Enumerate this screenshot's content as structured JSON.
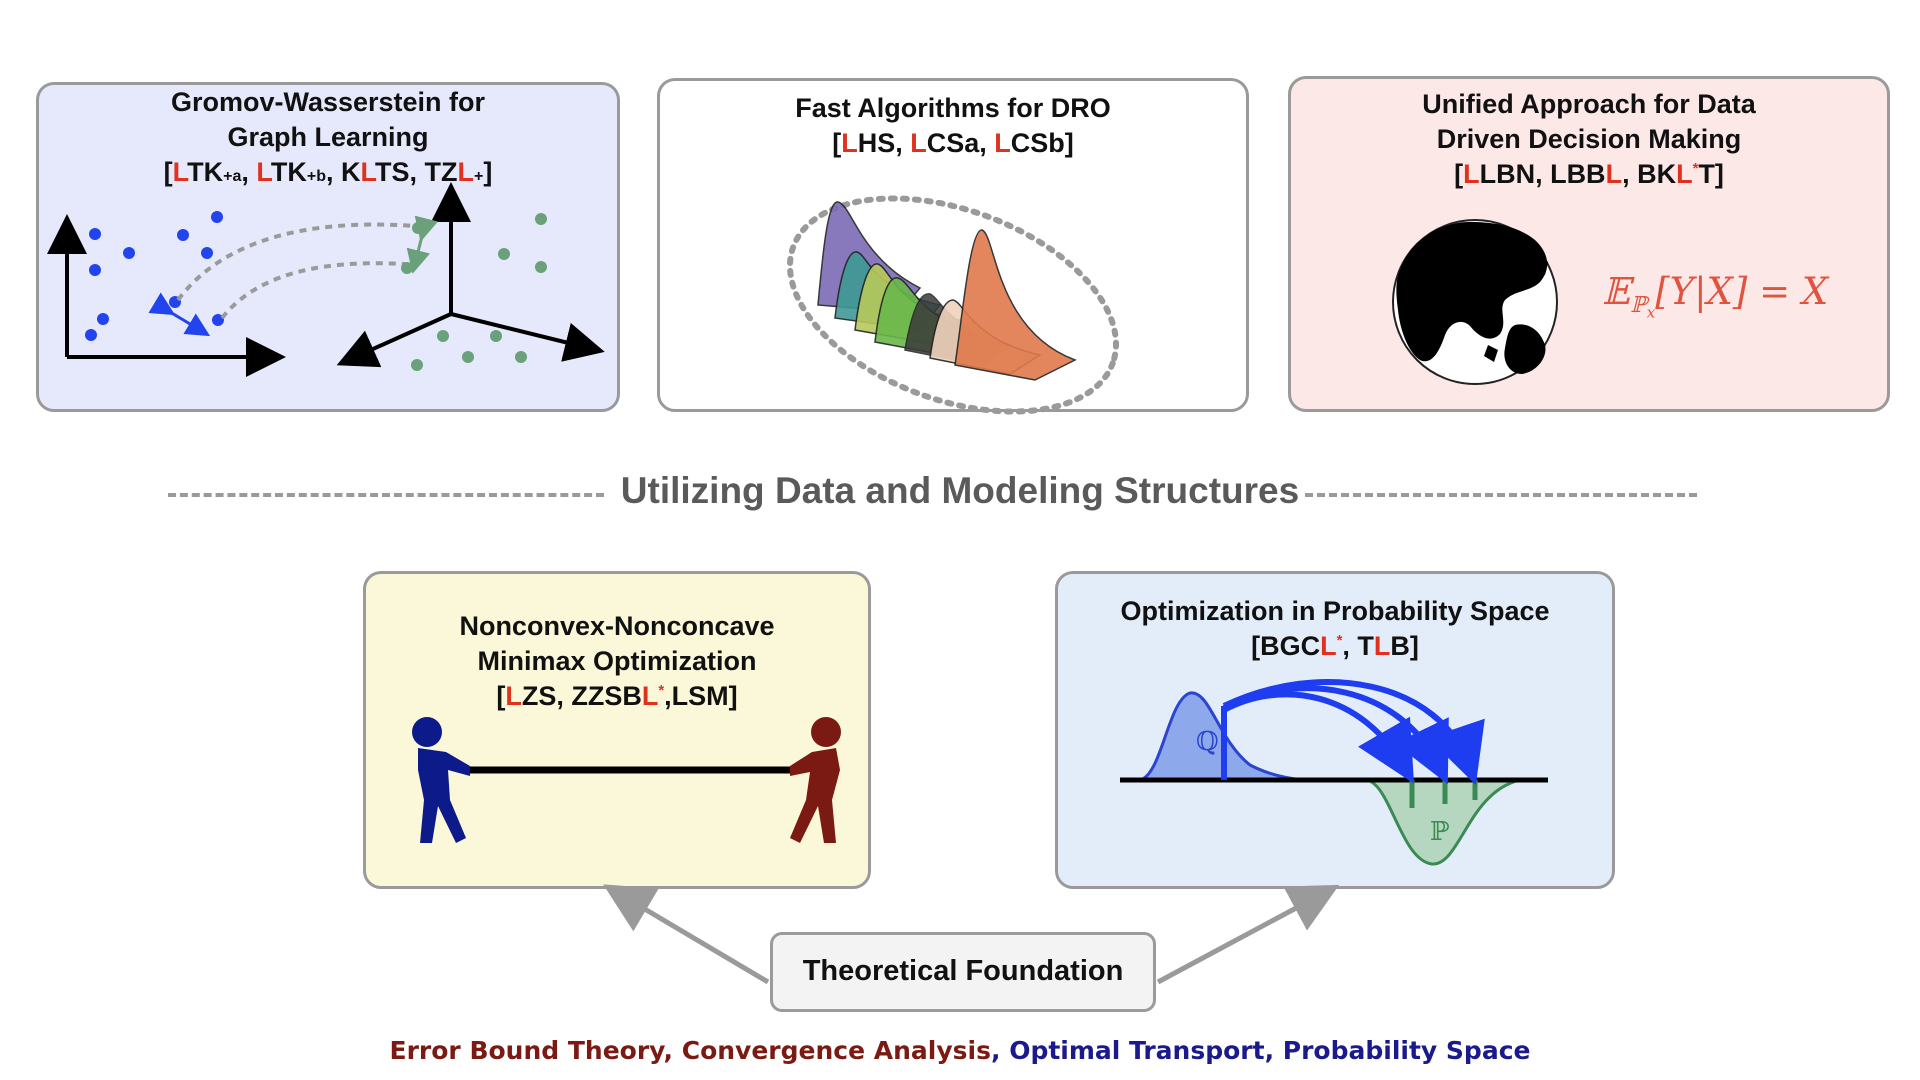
{
  "top_boxes": {
    "gw": {
      "title_line1": "Gromov-Wasserstein for",
      "title_line2": "Graph Learning",
      "refs": {
        "open": "[",
        "r1a": "L",
        "r1b": "TK",
        "r1c": "+a",
        "sep1": ", ",
        "r2a": "L",
        "r2b": "TK",
        "r2c": "+b",
        "sep2": ", K",
        "r3a": "L",
        "r3b": "TS, TZ",
        "r4a": "L",
        "r4b": "+",
        "close": "]"
      }
    },
    "dro": {
      "title_line1": "Fast Algorithms for DRO",
      "refs": {
        "open": "[",
        "r1a": "L",
        "r1b": "HS, ",
        "r2a": "L",
        "r2b": "CSa, ",
        "r3a": "L",
        "r3b": "CSb",
        "close": "]"
      }
    },
    "unified": {
      "title_line1": "Unified Approach for Data",
      "title_line2": "Driven Decision Making",
      "refs": {
        "open": "[",
        "r1a": "L",
        "r1b": "LBN, LBB",
        "r2a": "L",
        "r2b": ", BK",
        "r3a": "L",
        "r3star": "*",
        "r3b": "T",
        "close": "]"
      },
      "formula_E": "𝔼",
      "formula_sub": "ℙ",
      "formula_subsub": "x",
      "formula_rest": "[Y|X] = X"
    }
  },
  "section_label": "Utilizing Data and Modeling Structures",
  "bottom_boxes": {
    "minimax": {
      "title_line1": "Nonconvex-Nonconcave",
      "title_line2": "Minimax Optimization",
      "refs": {
        "open": "[",
        "r1a": "L",
        "r1b": "ZS, ZZSB",
        "r2a": "L",
        "r2star": "*",
        "r2b": ",LSM",
        "close": "]"
      }
    },
    "prob": {
      "title_line1": "Optimization in Probability Space",
      "refs": {
        "open": "[BGC",
        "r1a": "L",
        "r1star": "*",
        "r1b": ", T",
        "r2a": "L",
        "r2b": "B",
        "close": "]"
      },
      "q_label": "ℚ",
      "p_label": "ℙ"
    }
  },
  "foundation": {
    "label": "Theoretical Foundation",
    "footer_1": "Error Bound Theory, Convergence Analysis",
    "footer_sep": ", ",
    "footer_2": "Optimal Transport, Probability Space"
  },
  "colors": {
    "red_initial": "#e0301e",
    "dot_blue": "#2244ee",
    "dot_green": "#6aa07a",
    "navy": "#0c1a8a",
    "maroon": "#7a1a12",
    "arrow_blue": "#1f3df0"
  }
}
